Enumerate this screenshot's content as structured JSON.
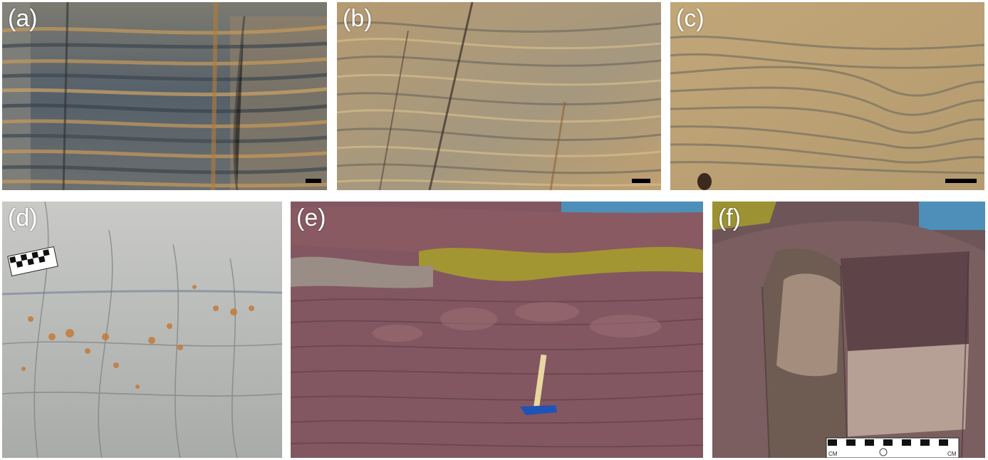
{
  "figure": {
    "panels": [
      {
        "id": "a",
        "label": "(a)",
        "subject": "banded grey and orange laminated rock outcrop",
        "has_scale_bar": true
      },
      {
        "id": "b",
        "label": "(b)",
        "subject": "wavy laminated tan and grey rock face",
        "has_scale_bar": true
      },
      {
        "id": "c",
        "label": "(c)",
        "subject": "tan laminated rock with wavy folded layers",
        "has_scale_bar": true
      },
      {
        "id": "d",
        "label": "(d)",
        "subject": "light grey weathered rock with rusty spots and photo scale",
        "has_scale_bar": false
      },
      {
        "id": "e",
        "label": "(e)",
        "subject": "red-purple layered coastal outcrop with hammer and seaweed",
        "has_scale_bar": false
      },
      {
        "id": "f",
        "label": "(f)",
        "subject": "purple-brown rock block with centimetre scale card",
        "has_scale_bar": false
      }
    ],
    "scale_card": {
      "left_text": "CM",
      "right_text": "CM"
    },
    "colors": {
      "grey_band": "#5d6468",
      "orange_band": "#c99a5a",
      "tan_rock": "#b9a57e",
      "light_grey_rock": "#b9bbb8",
      "red_purple_rock": "#8a5c63",
      "seaweed": "#a7a12a",
      "sea": "#4d8fb8",
      "hammer_handle": "#e8d7a0",
      "hammer_head": "#1f53b8"
    }
  }
}
